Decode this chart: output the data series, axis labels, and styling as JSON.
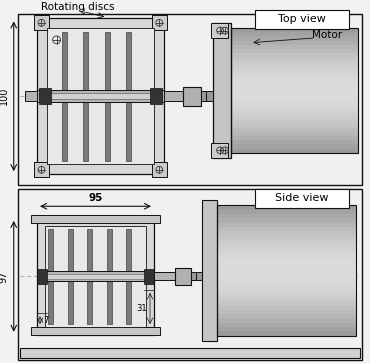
{
  "top_view_label": "Top view",
  "side_view_label": "Side view",
  "rotating_discs_label": "Rotating discs",
  "motor_label": "Motor",
  "dim_100": "100",
  "dim_95": "95",
  "dim_97": "97",
  "dim_7": "7",
  "dim_31": "31",
  "lc": "#111111",
  "bg": "#f2f2f2",
  "panel_fill": "#f5f5f5",
  "housing_fill": "#d8d8d8",
  "housing_inner": "#e8e8e8",
  "flange_fill": "#c5c5c5",
  "disc_fill": "#7a7a7a",
  "shaft_fill": "#b8b8b8",
  "motor_fill1": "#e8e8e8",
  "motor_fill2": "#b0b0b0",
  "pad_fill": "#cccccc",
  "center_dash": "#aaaaaa",
  "black_block": "#333333"
}
